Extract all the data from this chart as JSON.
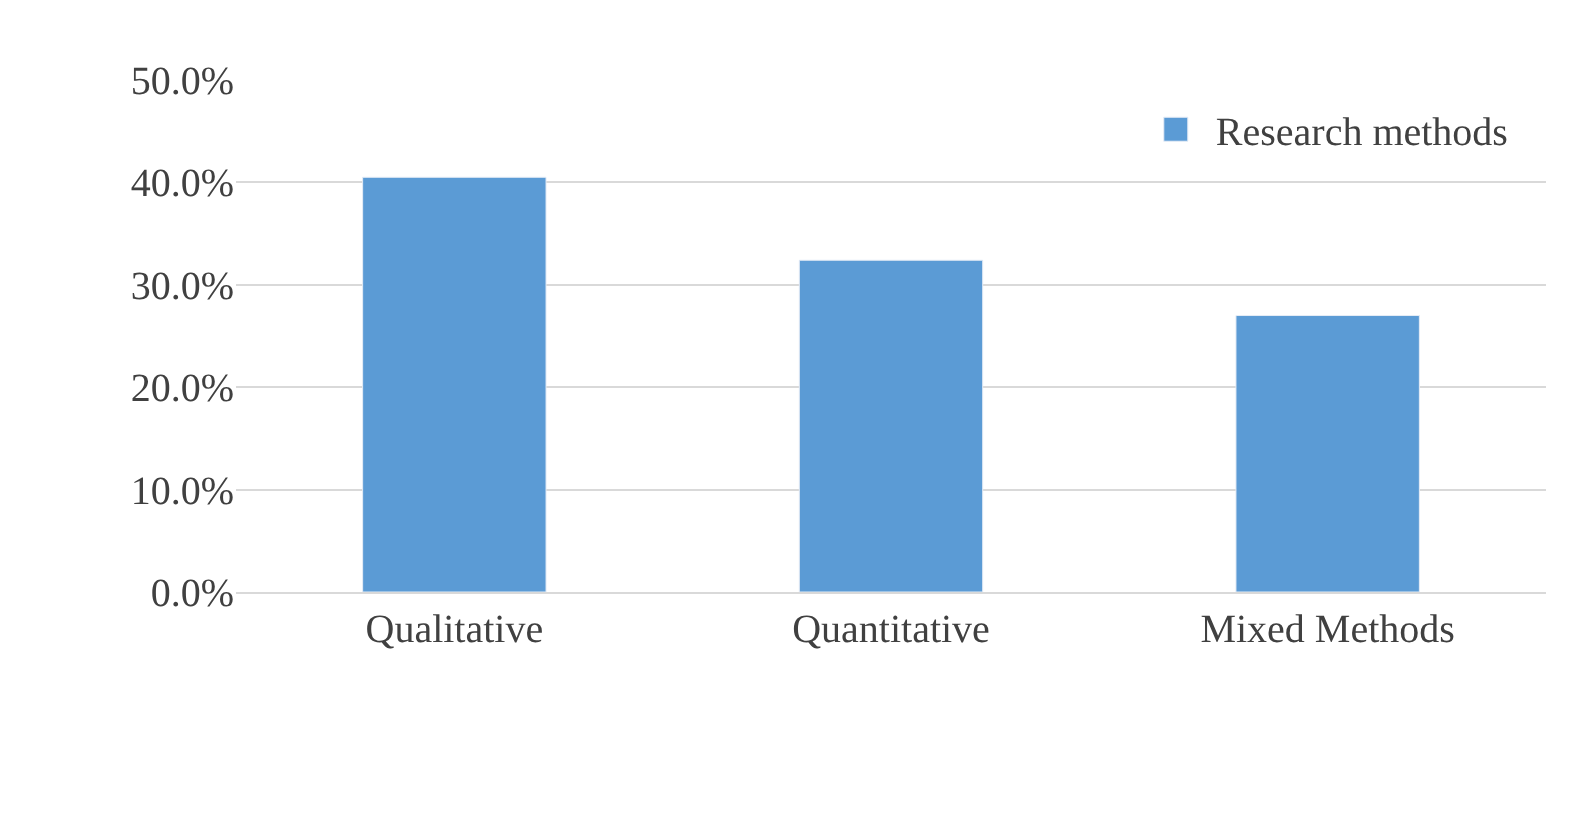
{
  "chart_data": {
    "type": "bar",
    "categories": [
      "Qualitative",
      "Quantitative",
      "Mixed Methods"
    ],
    "series": [
      {
        "name": "Research methods",
        "color": "#5b9bd5",
        "values": [
          40.5,
          32.4,
          27.0
        ]
      }
    ],
    "ylim": [
      0,
      50
    ],
    "yticks": [
      {
        "value": 0,
        "label": "0.0%"
      },
      {
        "value": 10,
        "label": "10.0%"
      },
      {
        "value": 20,
        "label": "20.0%"
      },
      {
        "value": 30,
        "label": "30.0%"
      },
      {
        "value": 40,
        "label": "40.0%"
      },
      {
        "value": 50,
        "label": "50.0%"
      }
    ],
    "grid": "y",
    "legend": "top right"
  }
}
